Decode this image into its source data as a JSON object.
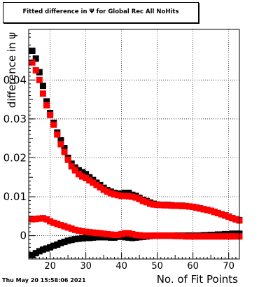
{
  "title": "Fitted difference in  Ψ  for Global Rec All NoHits",
  "timestamp": "Thu May 20 15:58:06 2021",
  "chart_data": {
    "type": "scatter",
    "title": "Fitted difference in  Ψ  for Global Rec All NoHits",
    "xlabel": "No. of Fit Points",
    "ylabel": "difference in ψ",
    "xlim": [
      14,
      73
    ],
    "ylim": [
      -0.006,
      0.053
    ],
    "grid": true,
    "x_ticks": [
      20,
      30,
      40,
      50,
      60,
      70
    ],
    "y_ticks": [
      0,
      0.01,
      0.02,
      0.03,
      0.04
    ],
    "y_tick_labels": [
      "0",
      "0.01",
      "0.02",
      "0.03",
      "0.04"
    ],
    "series": [
      {
        "color": "#000000",
        "x": [
          15,
          16,
          17,
          18,
          19,
          20,
          21,
          22,
          23,
          24,
          25,
          26,
          27,
          28,
          29,
          30,
          31,
          32,
          33,
          34,
          35,
          36,
          37,
          38,
          39,
          40,
          41,
          42,
          43,
          44,
          45,
          46,
          47,
          48,
          49,
          50,
          51,
          52,
          53,
          54,
          55,
          56,
          57,
          58,
          59,
          60,
          61,
          62,
          63,
          64,
          65,
          66,
          67,
          68,
          69,
          70,
          71,
          72,
          73
        ],
        "y": [
          0.0475,
          0.0455,
          0.042,
          0.0385,
          0.0345,
          0.0315,
          0.029,
          0.0265,
          0.0245,
          0.0225,
          0.02,
          0.0185,
          0.0175,
          0.0168,
          0.0163,
          0.0158,
          0.015,
          0.0143,
          0.0136,
          0.013,
          0.0123,
          0.0117,
          0.0113,
          0.011,
          0.0108,
          0.0108,
          0.011,
          0.011,
          0.0105,
          0.0102,
          0.0097,
          0.0092,
          0.0089,
          0.0085,
          0.0082,
          0.008,
          0.0079,
          0.0079,
          0.0079,
          0.0078,
          0.0077,
          0.0077,
          0.0077,
          0.0076,
          0.0075,
          0.0074,
          0.0072,
          0.007,
          0.0068,
          0.0066,
          0.0064,
          0.0061,
          0.0058,
          0.0055,
          0.0052,
          0.0049,
          0.0045,
          0.0042,
          0.004
        ]
      },
      {
        "color": "#000000",
        "x": [
          15,
          16,
          17,
          18,
          19,
          20,
          21,
          22,
          23,
          24,
          25,
          26,
          27,
          28,
          29,
          30,
          31,
          32,
          33,
          34,
          35,
          36,
          37,
          38,
          39,
          40,
          41,
          42,
          43,
          44,
          45,
          46,
          47,
          48,
          49,
          50,
          51,
          52,
          53,
          54,
          55,
          56,
          57,
          58,
          59,
          60,
          61,
          62,
          63,
          64,
          65,
          66,
          67,
          68,
          69,
          70,
          71,
          72,
          73
        ],
        "y": [
          -0.005,
          -0.0045,
          -0.004,
          -0.0036,
          -0.0033,
          -0.003,
          -0.0026,
          -0.0023,
          -0.0019,
          -0.0016,
          -0.0013,
          -0.0011,
          -0.0009,
          -0.0008,
          -0.0007,
          -0.0006,
          -0.0006,
          -0.0005,
          -0.0004,
          -0.0004,
          -0.0004,
          -0.0004,
          -0.0005,
          -0.0005,
          -0.0003,
          -0.0002,
          -0.0004,
          -0.0005,
          -0.0006,
          -0.0005,
          -0.0004,
          -0.0003,
          -0.0002,
          -0.0001,
          0.0,
          0.0,
          0.0,
          0.0,
          0.0,
          0.0,
          0.0,
          0.0,
          0.0,
          0.0,
          0.0,
          0.0,
          0.0,
          0.0,
          0.0001,
          0.0001,
          0.0002,
          0.0002,
          0.0003,
          0.0003,
          0.0004,
          0.0004,
          0.0005,
          0.0005,
          0.0005
        ]
      },
      {
        "color": "#ff0000",
        "x": [
          15,
          16,
          17,
          18,
          19,
          20,
          21,
          22,
          23,
          24,
          25,
          26,
          27,
          28,
          29,
          30,
          31,
          32,
          33,
          34,
          35,
          36,
          37,
          38,
          39,
          40,
          41,
          42,
          43,
          44,
          45,
          46,
          47,
          48,
          49,
          50,
          51,
          52,
          53,
          54,
          55,
          56,
          57,
          58,
          59,
          60,
          61,
          62,
          63,
          64,
          65,
          66,
          67,
          68,
          69,
          70,
          71,
          72,
          73
        ],
        "y": [
          0.0445,
          0.0425,
          0.04,
          0.0365,
          0.0335,
          0.031,
          0.0285,
          0.026,
          0.0235,
          0.0215,
          0.0195,
          0.0178,
          0.0168,
          0.0158,
          0.0152,
          0.0148,
          0.0142,
          0.0136,
          0.013,
          0.0124,
          0.0118,
          0.0113,
          0.0109,
          0.0106,
          0.0104,
          0.0102,
          0.0102,
          0.0101,
          0.01,
          0.0098,
          0.0094,
          0.0089,
          0.0086,
          0.0082,
          0.008,
          0.0079,
          0.0079,
          0.0078,
          0.0078,
          0.0077,
          0.0077,
          0.0077,
          0.0076,
          0.0076,
          0.0075,
          0.0074,
          0.0072,
          0.007,
          0.0068,
          0.0066,
          0.0064,
          0.0061,
          0.0058,
          0.0055,
          0.0052,
          0.0049,
          0.0045,
          0.0042,
          0.0039
        ]
      },
      {
        "color": "#ff0000",
        "x": [
          15,
          16,
          17,
          18,
          19,
          20,
          21,
          22,
          23,
          24,
          25,
          26,
          27,
          28,
          29,
          30,
          31,
          32,
          33,
          34,
          35,
          36,
          37,
          38,
          39,
          40,
          41,
          42,
          43,
          44,
          45,
          46,
          47,
          48,
          49,
          50,
          51,
          52,
          53,
          54,
          55,
          56,
          57,
          58,
          59,
          60,
          61,
          62,
          63,
          64,
          65,
          66,
          67,
          68,
          69,
          70,
          71,
          72,
          73
        ],
        "y": [
          0.0042,
          0.0043,
          0.0044,
          0.0045,
          0.0042,
          0.0037,
          0.0033,
          0.003,
          0.0027,
          0.0024,
          0.0021,
          0.0018,
          0.0015,
          0.0013,
          0.0011,
          0.001,
          0.0009,
          0.0008,
          0.0007,
          0.0006,
          0.0005,
          0.0004,
          0.0003,
          0.0002,
          0.0002,
          0.0004,
          0.0006,
          0.0006,
          0.0004,
          0.0002,
          0.0001,
          0.0,
          0.0,
          0.0,
          0.0,
          0.0,
          0.0,
          0.0,
          0.0,
          0.0,
          -0.0001,
          -0.0001,
          -0.0001,
          -0.0002,
          -0.0002,
          -0.0002,
          -0.0002,
          -0.0002,
          -0.0002,
          -0.0002,
          -0.0002,
          -0.0002,
          -0.0002,
          -0.0002,
          -0.0002,
          -0.0002,
          -0.0002,
          -0.0002,
          -0.0002
        ]
      }
    ]
  }
}
